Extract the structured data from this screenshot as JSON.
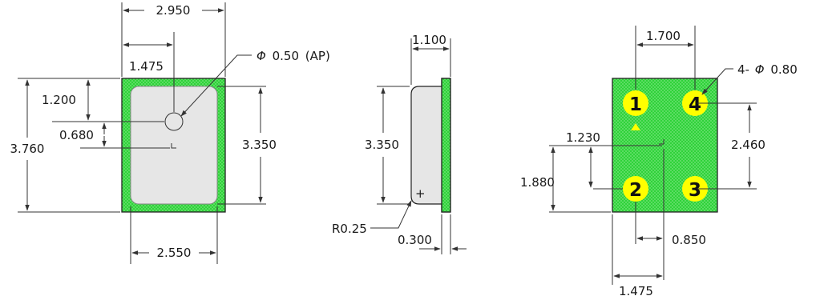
{
  "colors": {
    "pad_green": "#2fd23a",
    "pad_pattern": "#7ae57f",
    "body_gray": "#e6e6e6",
    "pin_yellow": "#ffff00",
    "line": "#333333"
  },
  "top_view": {
    "width": "2.950",
    "port_offset_x": "1.475",
    "port_offset_y": "1.200",
    "port_step": "0.680",
    "overall_height": "3.760",
    "lid_height": "3.350",
    "lid_width": "2.550",
    "port_diameter_symbol": "Φ",
    "port_diameter_value": "0.50",
    "port_note": "(AP)"
  },
  "side_view": {
    "thickness": "1.100",
    "height": "3.350",
    "corner_radius": "R0.25",
    "base_thickness": "0.300"
  },
  "bottom_view": {
    "pad_pitch_x": "1.700",
    "pad_label": "4-",
    "pad_diameter_symbol": "Φ",
    "pad_diameter_value": "0.80",
    "center_offset_y": "1.230",
    "center_offset_y_full": "1.880",
    "pad_pitch_y": "2.460",
    "center_offset_x": "0.850",
    "center_offset_x_full": "1.475",
    "pins": [
      "1",
      "4",
      "2",
      "3"
    ]
  }
}
